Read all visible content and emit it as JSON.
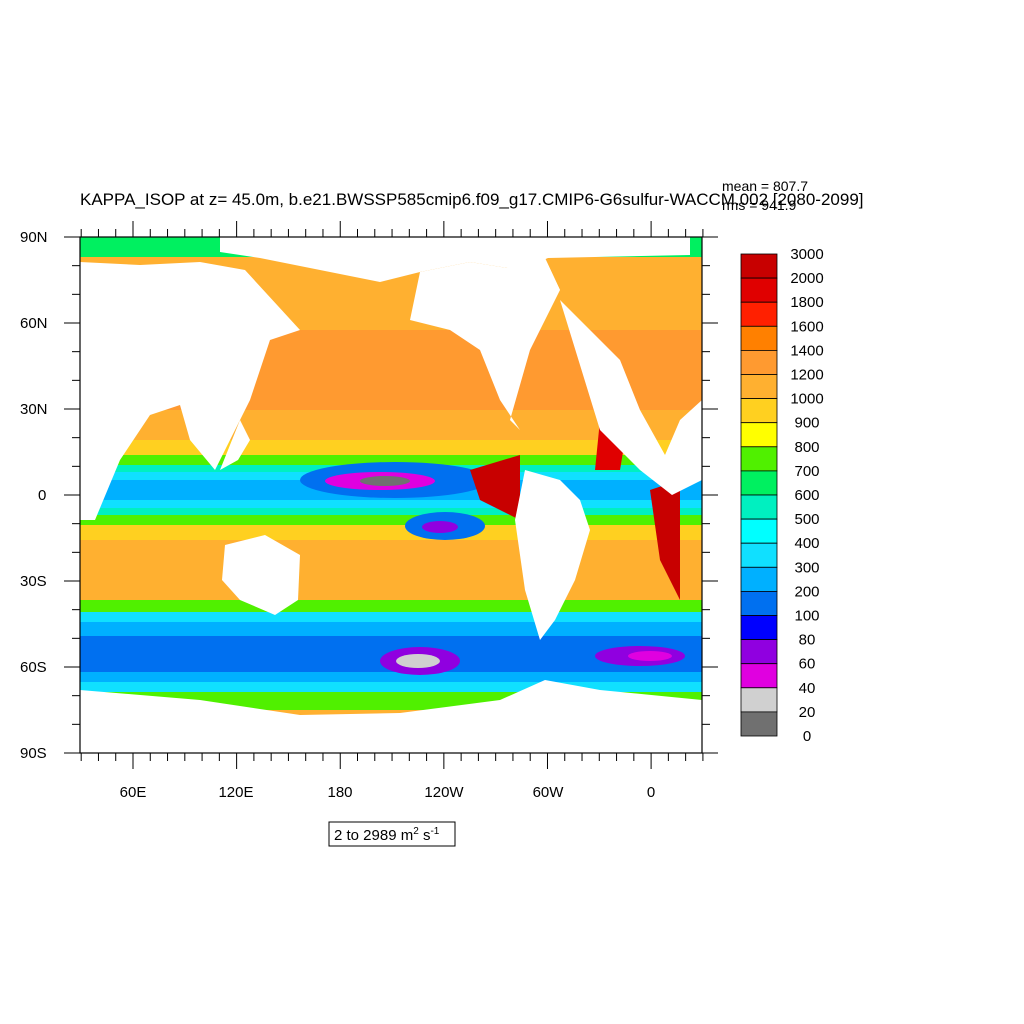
{
  "title": "KAPPA_ISOP at z=  45.0m, b.e21.BWSSP585cmip6.f09_g17.CMIP6-G6sulfur-WACCM.002 [2080-2099]",
  "stats": {
    "mean": "mean = 807.7",
    "rms": "rms = 941.9"
  },
  "range_label": {
    "prefix": "2 to 2989 m",
    "sup1": "2",
    "mid": " s",
    "sup2": "-1"
  },
  "colorbar": {
    "levels": [
      "3000",
      "2000",
      "1800",
      "1600",
      "1400",
      "1200",
      "1000",
      "900",
      "800",
      "700",
      "600",
      "500",
      "400",
      "300",
      "200",
      "100",
      "80",
      "60",
      "40",
      "20",
      "0"
    ],
    "colors": [
      "#c80000",
      "#e00000",
      "#ff2000",
      "#ff8000",
      "#ff9a30",
      "#ffb030",
      "#ffd020",
      "#ffff00",
      "#50f000",
      "#00f060",
      "#00f0c0",
      "#00ffff",
      "#10e0ff",
      "#00b0ff",
      "#0070f0",
      "#0000ff",
      "#9000e0",
      "#e000e0",
      "#d0d0d0",
      "#707070"
    ]
  },
  "axes": {
    "lat_labels": [
      "90N",
      "60N",
      "30N",
      "0",
      "30S",
      "60S",
      "90S"
    ],
    "lon_labels": [
      "60E",
      "120E",
      "180",
      "120W",
      "60W",
      "0"
    ]
  },
  "map_colors": {
    "land": "#ffffff",
    "ocean_base": "#ffb030",
    "arctic": "#00f060"
  }
}
